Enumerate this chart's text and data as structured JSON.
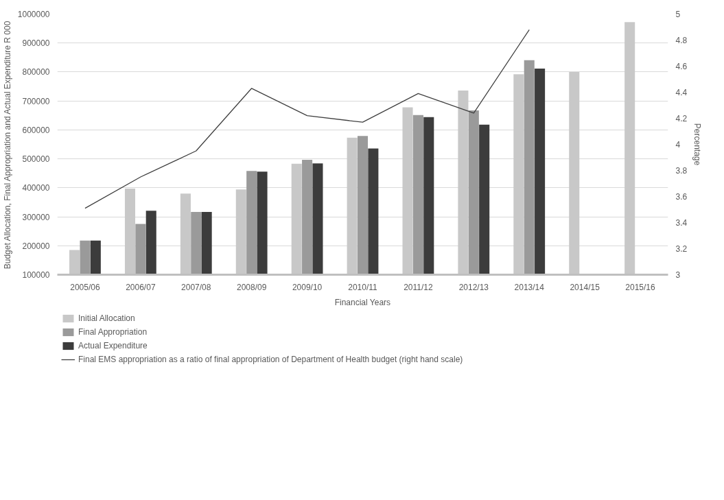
{
  "chart_data": {
    "type": "bar",
    "xlabel": "Financial Years",
    "ylabel": "Budget Allocation, Final Appropriation and Actual Expenditure R 000",
    "y2label": "Percentage",
    "categories": [
      "2005/06",
      "2006/07",
      "2007/08",
      "2008/09",
      "2009/10",
      "2010/11",
      "2011/12",
      "2012/13",
      "2013/14",
      "2014/15",
      "2015/16"
    ],
    "series": [
      {
        "name": "Initial Allocation",
        "color": "#c8c8c8",
        "values": [
          185000,
          397000,
          380000,
          394000,
          483000,
          573000,
          678000,
          736000,
          792000,
          800000,
          972000
        ]
      },
      {
        "name": "Final Appropriation",
        "color": "#9a9a9a",
        "values": [
          218000,
          275000,
          317000,
          458000,
          497000,
          579000,
          651000,
          667000,
          841000,
          null,
          null
        ]
      },
      {
        "name": "Actual Expenditure",
        "color": "#3c3c3c",
        "values": [
          218000,
          321000,
          317000,
          456000,
          484000,
          536000,
          644000,
          618000,
          812000,
          null,
          null
        ]
      },
      {
        "name": "Final EMS appropriation as a ratio of final appropriation of Department of Health budget (right hand scale)",
        "type": "line",
        "axis": "y2",
        "color": "#404040",
        "values": [
          3.51,
          3.75,
          3.95,
          4.43,
          4.22,
          4.17,
          4.39,
          4.24,
          4.88,
          null,
          null
        ]
      }
    ],
    "ylim": [
      100000,
      1000000
    ],
    "yticks": [
      100000,
      200000,
      300000,
      400000,
      500000,
      600000,
      700000,
      800000,
      900000,
      1000000
    ],
    "y2lim": [
      3,
      5
    ],
    "y2ticks": [
      3,
      3.2,
      3.4,
      3.6,
      3.8,
      4,
      4.2,
      4.4,
      4.6,
      4.8,
      5
    ],
    "grid": "y",
    "legend": "bottom",
    "marker": "none",
    "line_style": "solid"
  }
}
